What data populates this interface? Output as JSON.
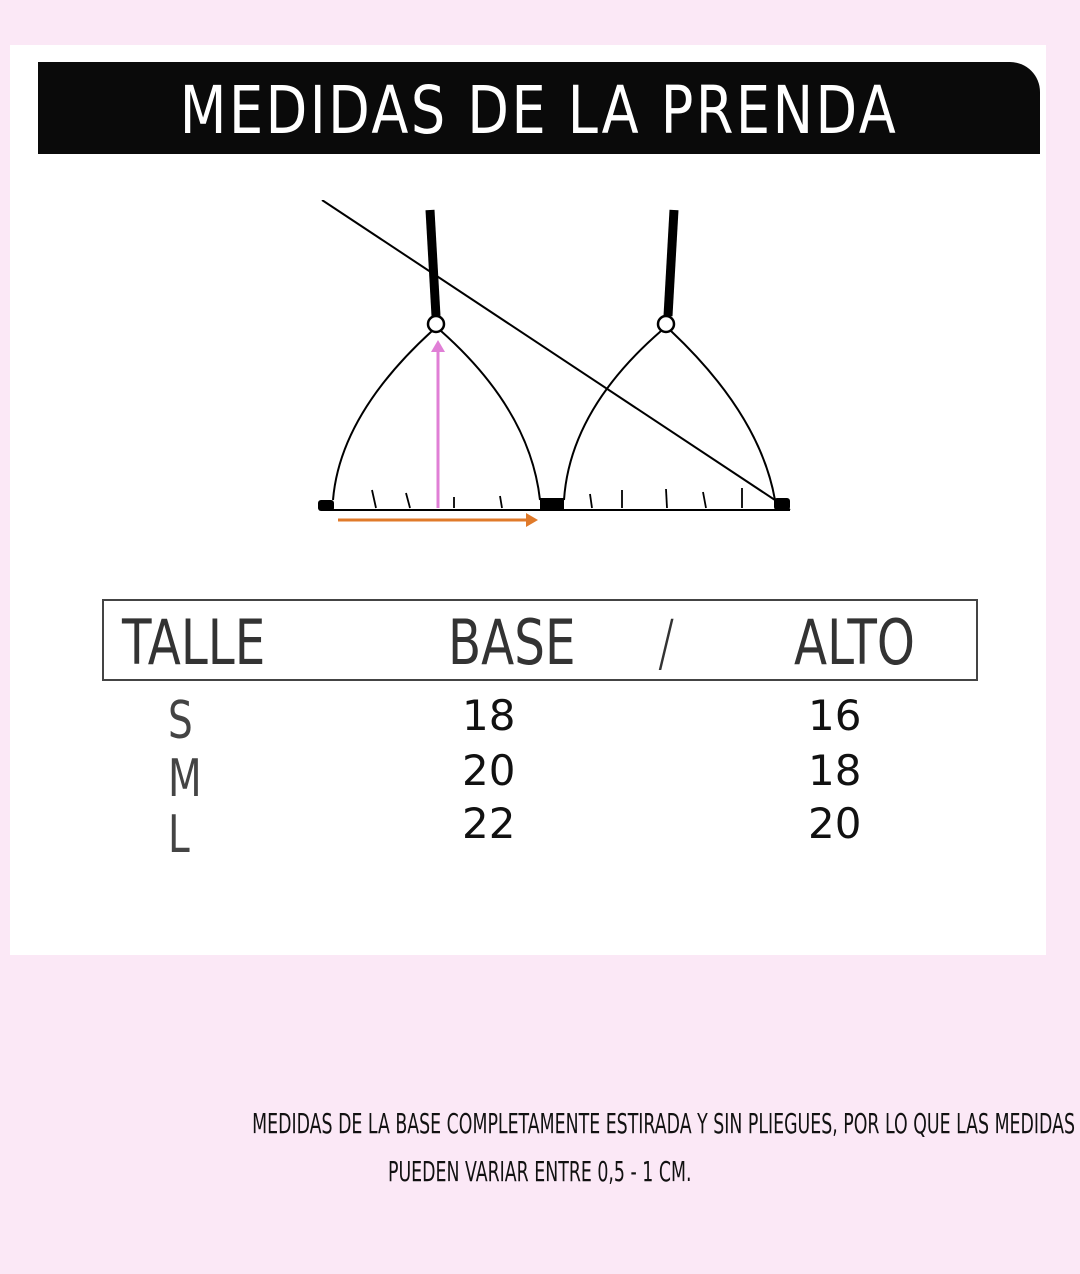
{
  "header": {
    "title": "MEDIDAS DE LA PRENDA"
  },
  "diagram": {
    "height_arrow_color": "#e07fd6",
    "base_arrow_color": "#e07a2a"
  },
  "table": {
    "headers": {
      "size": "TALLE",
      "base": "BASE",
      "separator": "/",
      "height": "ALTO"
    },
    "rows": [
      {
        "size": "S",
        "base": "18",
        "height": "16"
      },
      {
        "size": "M",
        "base": "20",
        "height": "18"
      },
      {
        "size": "L",
        "base": "22",
        "height": "20"
      }
    ]
  },
  "note": {
    "line1": "MEDIDAS DE LA BASE COMPLETAMENTE ESTIRADA Y SIN PLIEGUES, POR LO QUE LAS MEDIDAS",
    "line2": "PUEDEN VARIAR ENTRE 0,5 - 1 CM."
  }
}
